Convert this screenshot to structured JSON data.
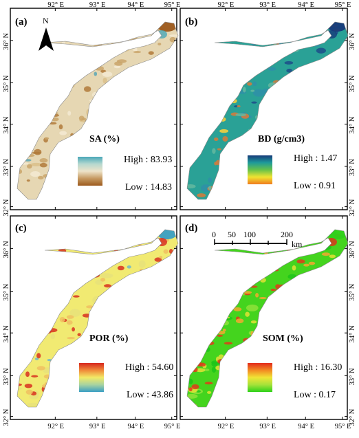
{
  "axes": {
    "lon_ticks": [
      "92° E",
      "93° E",
      "94° E",
      "95° E"
    ],
    "lat_ticks": [
      "32° N",
      "33° N",
      "34° N",
      "35° N",
      "36° N"
    ]
  },
  "north_arrow": {
    "label": "N"
  },
  "scalebar": {
    "ticks": [
      "0",
      "50",
      "100",
      "200"
    ],
    "unit": "km"
  },
  "panels": [
    {
      "id": "a",
      "label": "(a)",
      "title": "SA (%)",
      "high_label": "High : 83.93",
      "low_label": "Low : 14.83",
      "high": 83.93,
      "low": 14.83,
      "ramp": [
        "#4aa7b8",
        "#b5d8cf",
        "#ede3c9",
        "#c69a62",
        "#9c5a1e"
      ],
      "base": "#e6d7b3",
      "patches": [
        [
          "#d9c08a",
          0.25,
          0.35
        ],
        [
          "#b07a3a",
          0.6,
          0.2
        ],
        [
          "#f3ead2",
          0.45,
          0.25
        ],
        [
          "#c9a46a",
          0.75,
          0.12
        ],
        [
          "#5aa7b5",
          0.06,
          0.05
        ]
      ]
    },
    {
      "id": "b",
      "label": "(b)",
      "title": "BD (g/cm3)",
      "high_label": "High : 1.47",
      "low_label": "Low : 0.91",
      "high": 1.47,
      "low": 0.91,
      "ramp": [
        "#163a7a",
        "#1e9a9a",
        "#66c24a",
        "#f0e431",
        "#f07a1e"
      ],
      "base": "#2aa196",
      "patches": [
        [
          "#2f8fa8",
          0.3,
          0.4
        ],
        [
          "#1c4e8a",
          0.15,
          0.15
        ],
        [
          "#d97a3a",
          0.45,
          0.12
        ],
        [
          "#64b8a0",
          0.5,
          0.2
        ],
        [
          "#ffd23a",
          0.05,
          0.05
        ]
      ]
    },
    {
      "id": "c",
      "label": "(c)",
      "title": "POR (%)",
      "high_label": "High : 54.60",
      "low_label": "Low : 43.86",
      "high": 54.6,
      "low": 43.86,
      "ramp": [
        "#d7261e",
        "#f08a3a",
        "#f2ea66",
        "#a8d3a0",
        "#3a9fc4"
      ],
      "base": "#f1ea72",
      "patches": [
        [
          "#e8e27a",
          0.3,
          0.5
        ],
        [
          "#d8311e",
          0.55,
          0.15
        ],
        [
          "#6fb8c8",
          0.08,
          0.05
        ],
        [
          "#f0c060",
          0.4,
          0.08
        ]
      ]
    },
    {
      "id": "d",
      "label": "(d)",
      "title": "SOM (%)",
      "high_label": "High : 16.30",
      "low_label": "Low : 0.17",
      "high": 16.3,
      "low": 0.17,
      "ramp": [
        "#e32a1a",
        "#f28a22",
        "#f0e436",
        "#a6e23a",
        "#2ed11a"
      ],
      "base": "#44d41e",
      "patches": [
        [
          "#8ee23a",
          0.3,
          0.45
        ],
        [
          "#1dc41a",
          0.2,
          0.3
        ],
        [
          "#e2e036",
          0.55,
          0.12
        ],
        [
          "#e23a1a",
          0.75,
          0.06
        ],
        [
          "#f2a830",
          0.6,
          0.06
        ]
      ]
    }
  ]
}
